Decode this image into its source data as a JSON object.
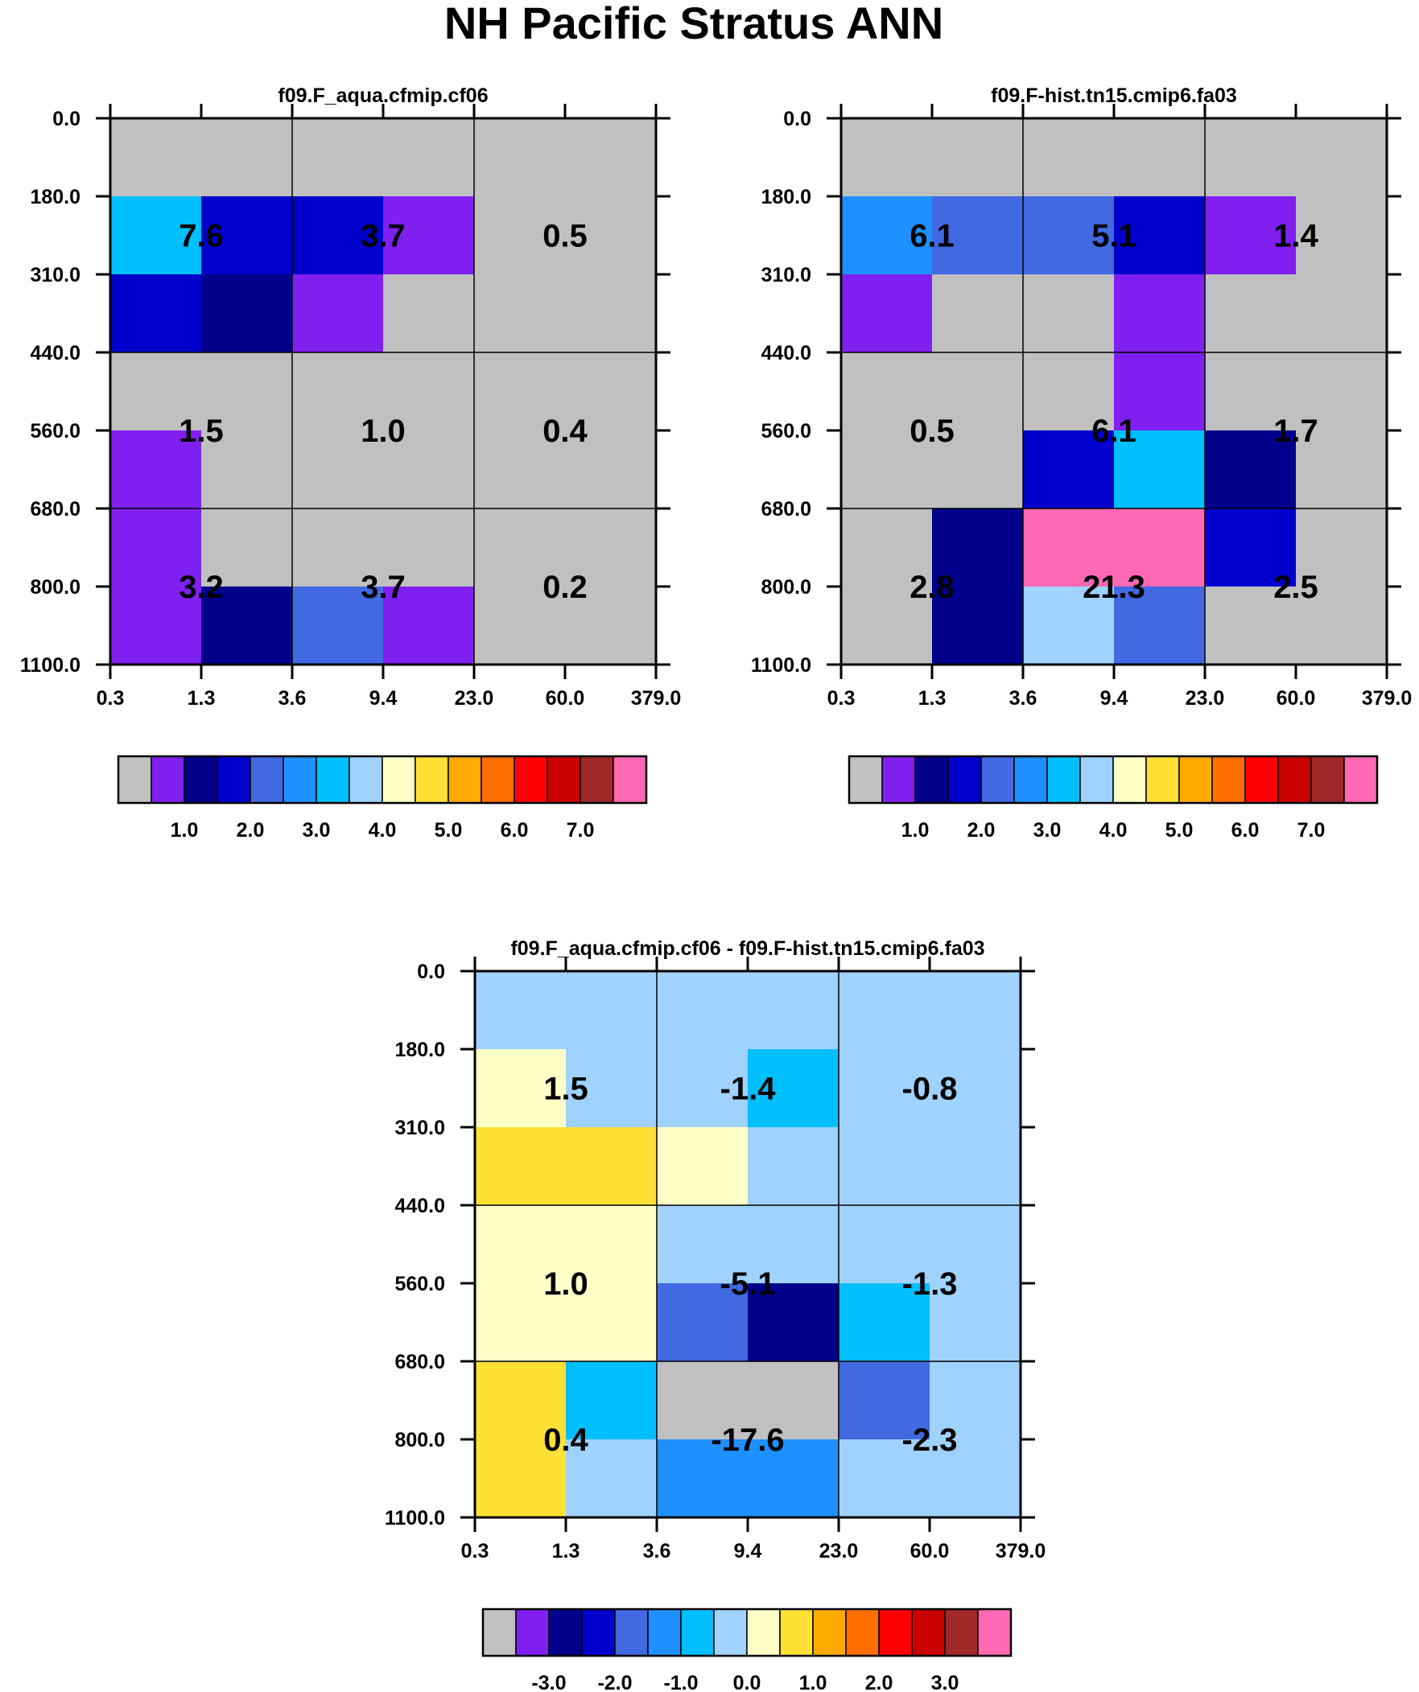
{
  "title": "NH Pacific Stratus ANN",
  "colorbar_colors": [
    "#c0c0c0",
    "#8020f0",
    "#00008b",
    "#0000cd",
    "#4169e1",
    "#1e90ff",
    "#00bfff",
    "#a0d2ff",
    "#ffffc8",
    "#ffe135",
    "#ffaa00",
    "#ff6e00",
    "#ff0000",
    "#c80000",
    "#a02828",
    "#ff69b4"
  ],
  "chart_data": [
    {
      "type": "heatmap",
      "title": "f09.F_aqua.cfmip.cf06",
      "x_tick_labels": [
        "0.3",
        "1.3",
        "3.6",
        "9.4",
        "23.0",
        "60.0",
        "379.0"
      ],
      "y_tick_labels": [
        "0.0",
        "180.0",
        "310.0",
        "440.0",
        "560.0",
        "680.0",
        "800.0",
        "1100.0"
      ],
      "cell_colors": [
        [
          0,
          0,
          0,
          0,
          0,
          0
        ],
        [
          6,
          3,
          3,
          1,
          0,
          0
        ],
        [
          3,
          2,
          1,
          0,
          0,
          0
        ],
        [
          0,
          0,
          0,
          0,
          0,
          0
        ],
        [
          1,
          0,
          0,
          0,
          0,
          0
        ],
        [
          1,
          0,
          0,
          0,
          0,
          0
        ],
        [
          1,
          2,
          4,
          1,
          0,
          0
        ]
      ],
      "box_labels": [
        [
          "7.6",
          "3.7",
          "0.5"
        ],
        [
          "1.5",
          "1.0",
          "0.4"
        ],
        [
          "3.2",
          "3.7",
          "0.2"
        ]
      ],
      "colorbar_labels": [
        "1.0",
        "2.0",
        "3.0",
        "4.0",
        "5.0",
        "6.0",
        "7.0"
      ]
    },
    {
      "type": "heatmap",
      "title": "f09.F-hist.tn15.cmip6.fa03",
      "x_tick_labels": [
        "0.3",
        "1.3",
        "3.6",
        "9.4",
        "23.0",
        "60.0",
        "379.0"
      ],
      "y_tick_labels": [
        "0.0",
        "180.0",
        "310.0",
        "440.0",
        "560.0",
        "680.0",
        "800.0",
        "1100.0"
      ],
      "cell_colors": [
        [
          0,
          0,
          0,
          0,
          0,
          0
        ],
        [
          5,
          4,
          4,
          3,
          1,
          0
        ],
        [
          1,
          0,
          0,
          1,
          0,
          0
        ],
        [
          0,
          0,
          0,
          1,
          0,
          0
        ],
        [
          0,
          0,
          3,
          6,
          2,
          0
        ],
        [
          0,
          2,
          15,
          15,
          3,
          0
        ],
        [
          0,
          2,
          7,
          4,
          0,
          0
        ]
      ],
      "box_labels": [
        [
          "6.1",
          "5.1",
          "1.4"
        ],
        [
          "0.5",
          "6.1",
          "1.7"
        ],
        [
          "2.8",
          "21.3",
          "2.5"
        ]
      ],
      "colorbar_labels": [
        "1.0",
        "2.0",
        "3.0",
        "4.0",
        "5.0",
        "6.0",
        "7.0"
      ]
    },
    {
      "type": "heatmap",
      "title": "f09.F_aqua.cfmip.cf06 - f09.F-hist.tn15.cmip6.fa03",
      "x_tick_labels": [
        "0.3",
        "1.3",
        "3.6",
        "9.4",
        "23.0",
        "60.0",
        "379.0"
      ],
      "y_tick_labels": [
        "0.0",
        "180.0",
        "310.0",
        "440.0",
        "560.0",
        "680.0",
        "800.0",
        "1100.0"
      ],
      "cell_colors": [
        [
          7,
          7,
          7,
          7,
          7,
          7
        ],
        [
          8,
          7,
          7,
          6,
          7,
          7
        ],
        [
          9,
          9,
          8,
          7,
          7,
          7
        ],
        [
          8,
          8,
          7,
          7,
          7,
          7
        ],
        [
          8,
          8,
          4,
          2,
          6,
          7
        ],
        [
          9,
          6,
          0,
          0,
          4,
          7
        ],
        [
          9,
          7,
          5,
          5,
          7,
          7
        ]
      ],
      "box_labels": [
        [
          "1.5",
          "-1.4",
          "-0.8"
        ],
        [
          "1.0",
          "-5.1",
          "-1.3"
        ],
        [
          "0.4",
          "-17.6",
          "-2.3"
        ]
      ],
      "colorbar_labels": [
        "-3.0",
        "-2.0",
        "-1.0",
        "0.0",
        "1.0",
        "2.0",
        "3.0"
      ]
    }
  ]
}
